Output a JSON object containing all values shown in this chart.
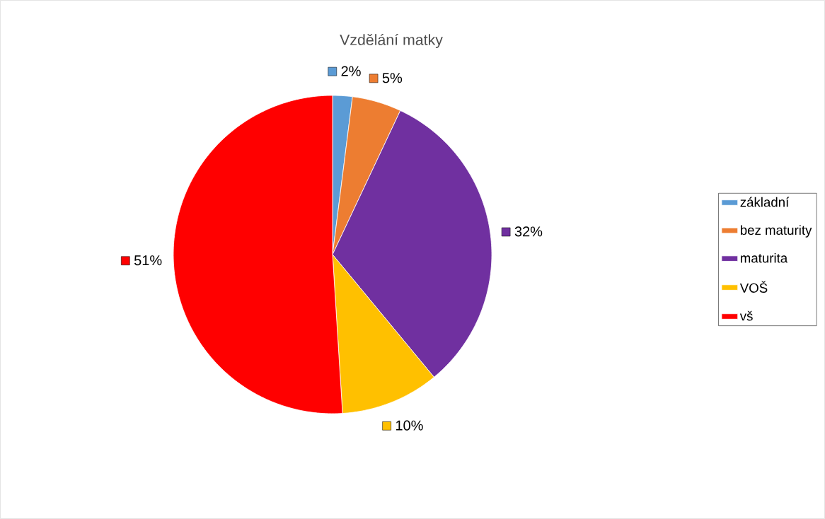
{
  "chart_data": {
    "type": "pie",
    "title": "Vzdělání matky",
    "categories": [
      "základní",
      "bez maturity",
      "maturita",
      "VOŠ",
      "vš"
    ],
    "values": [
      2,
      5,
      32,
      10,
      51
    ],
    "colors": [
      "#5b9bd5",
      "#ed7d31",
      "#7030a0",
      "#ffc000",
      "#ff0000"
    ],
    "value_labels": [
      "2%",
      "5%",
      "32%",
      "10%",
      "51%"
    ],
    "legend": "right"
  }
}
